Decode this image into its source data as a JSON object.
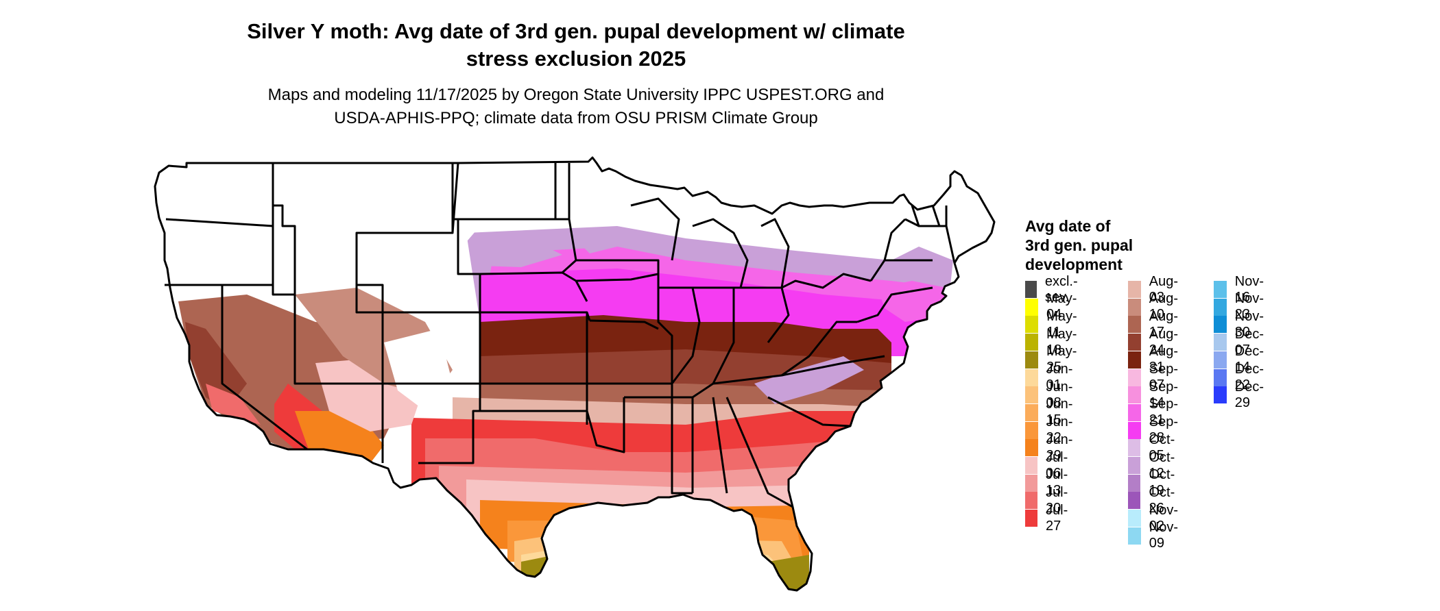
{
  "header": {
    "title_line1": "Silver Y moth: Avg date of 3rd gen. pupal development w/ climate",
    "title_line2": "stress exclusion 2025",
    "subtitle_line1": "Maps and modeling 11/17/2025 by Oregon State University IPPC USPEST.ORG and",
    "subtitle_line2": "USDA-APHIS-PPQ; climate data from OSU PRISM Climate Group"
  },
  "legend": {
    "title_line1": "Avg date of",
    "title_line2": "3rd gen. pupal",
    "title_line3": "development",
    "items": [
      {
        "label": "excl.-sev.",
        "color": "#4a4a4a"
      },
      {
        "label": "May-04",
        "color": "#ffff00"
      },
      {
        "label": "May-11",
        "color": "#dddd00"
      },
      {
        "label": "May-18",
        "color": "#bbb300"
      },
      {
        "label": "May-25",
        "color": "#9c8a10"
      },
      {
        "label": "Jun-01",
        "color": "#fdd99a"
      },
      {
        "label": "Jun-08",
        "color": "#fcc27a"
      },
      {
        "label": "Jun-15",
        "color": "#fbac5a"
      },
      {
        "label": "Jun-22",
        "color": "#fa973a"
      },
      {
        "label": "Jun-29",
        "color": "#f5821c"
      },
      {
        "label": "Jul-06",
        "color": "#f7c4c4"
      },
      {
        "label": "Jul-13",
        "color": "#f29a9a"
      },
      {
        "label": "Jul-20",
        "color": "#f06b6b"
      },
      {
        "label": "Jul-27",
        "color": "#ee3b3b"
      },
      {
        "label": "Aug-03",
        "color": "#e6b5a8"
      },
      {
        "label": "Aug-10",
        "color": "#c98c7c"
      },
      {
        "label": "Aug-17",
        "color": "#ad6552"
      },
      {
        "label": "Aug-24",
        "color": "#934030"
      },
      {
        "label": "Aug-31",
        "color": "#7a2310"
      },
      {
        "label": "Sep-07",
        "color": "#f8b8e0"
      },
      {
        "label": "Sep-14",
        "color": "#f790de"
      },
      {
        "label": "Sep-21",
        "color": "#f566e8"
      },
      {
        "label": "Sep-28",
        "color": "#f53cf2"
      },
      {
        "label": "Oct-05",
        "color": "#ddbde6"
      },
      {
        "label": "Oct-12",
        "color": "#c9a0d8"
      },
      {
        "label": "Oct-19",
        "color": "#b37ec7"
      },
      {
        "label": "Oct-26",
        "color": "#9c56b9"
      },
      {
        "label": "Nov-02",
        "color": "#b8ecfc"
      },
      {
        "label": "Nov-09",
        "color": "#8dd8f2"
      },
      {
        "label": "Nov-16",
        "color": "#5cc0ea"
      },
      {
        "label": "Nov-23",
        "color": "#33a8e0"
      },
      {
        "label": "Nov-30",
        "color": "#0f8ed6"
      },
      {
        "label": "Dec-07",
        "color": "#a8c8ee"
      },
      {
        "label": "Dec-14",
        "color": "#8aa8f0"
      },
      {
        "label": "Dec-22",
        "color": "#5a78f2"
      },
      {
        "label": "Dec-29",
        "color": "#2a3cfc"
      }
    ]
  }
}
